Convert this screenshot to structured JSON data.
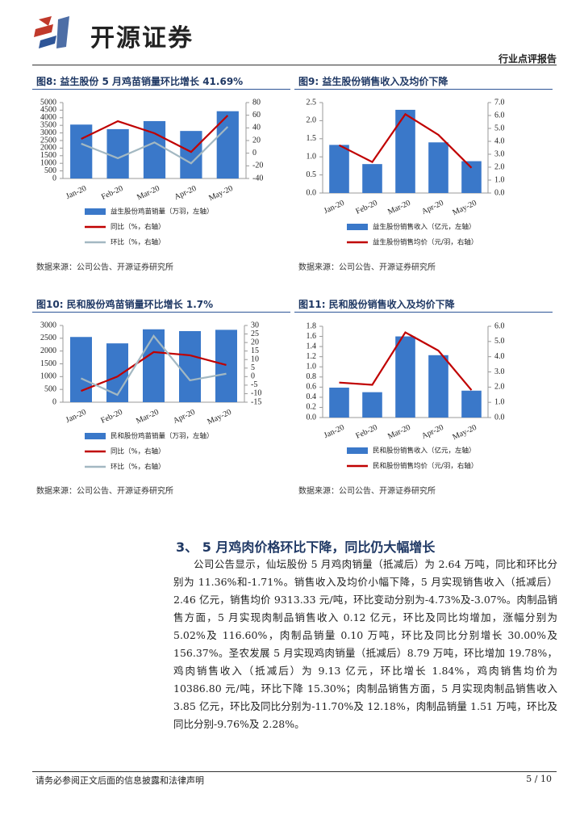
{
  "header": {
    "logo": "开源证券",
    "report_type": "行业点评报告"
  },
  "chart_data": [
    {
      "type": "bar",
      "title": "图8: 益生股份 5 月鸡苗销量环比增长 41.69%",
      "source": "数据来源：公司公告、开源证券研究所",
      "categories": [
        "Jan-20",
        "Feb-20",
        "Mar-20",
        "Apr-20",
        "May-20"
      ],
      "series": [
        {
          "name": "益生股份鸡苗销量（万羽，左轴）",
          "type": "bar",
          "color": "#3a78c9",
          "values": [
            3550,
            3250,
            3780,
            3130,
            4430
          ]
        },
        {
          "name": "同比（%，右轴）",
          "type": "line",
          "axis": "y2",
          "color": "#c00000",
          "values": [
            22.5,
            50.6,
            31.5,
            2,
            59.6
          ]
        },
        {
          "name": "环比（%，右轴）",
          "type": "line",
          "axis": "y2",
          "color": "#a3b8c2",
          "values": [
            15,
            -8,
            17,
            -16,
            41.69
          ]
        }
      ],
      "ylim": [
        0,
        5000
      ],
      "yticks": [
        0,
        500,
        1000,
        1500,
        2000,
        2500,
        3000,
        3500,
        4000,
        4500,
        5000
      ],
      "y2lim": [
        -40,
        80
      ],
      "y2ticks": [
        -40,
        -20,
        0,
        20,
        40,
        60,
        80
      ]
    },
    {
      "type": "bar",
      "title": "图9: 益生股份销售收入及均价下降",
      "source": "数据来源：公司公告、开源证券研究所",
      "categories": [
        "Jan-20",
        "Feb-20",
        "Mar-20",
        "Apr-20",
        "May-20"
      ],
      "series": [
        {
          "name": "益生股份销售收入（亿元，左轴）",
          "type": "bar",
          "color": "#3a78c9",
          "values": [
            1.33,
            0.8,
            2.3,
            1.4,
            0.88
          ]
        },
        {
          "name": "益生股份销售均价（元/羽，右轴）",
          "type": "line",
          "axis": "y2",
          "color": "#c00000",
          "values": [
            3.7,
            2.4,
            6.1,
            4.5,
            1.95
          ]
        }
      ],
      "ylim": [
        0,
        2.5
      ],
      "yticks": [
        {
          "value": 0,
          "label": "0.0"
        },
        0.5,
        {
          "value": 1,
          "label": "1.0"
        },
        1.5,
        {
          "value": 2,
          "label": "2.0"
        },
        2.5
      ],
      "y2lim": [
        0,
        7
      ],
      "y2ticks": [
        {
          "value": 0,
          "label": "0.0"
        },
        {
          "value": 1,
          "label": "1.0"
        },
        {
          "value": 2,
          "label": "2.0"
        },
        {
          "value": 3,
          "label": "3.0"
        },
        {
          "value": 4,
          "label": "4.0"
        },
        {
          "value": 5,
          "label": "5.0"
        },
        {
          "value": 6,
          "label": "6.0"
        },
        {
          "value": 7,
          "label": "7.0"
        }
      ]
    },
    {
      "type": "bar",
      "title": "图10: 民和股份鸡苗销量环比增长 1.7%",
      "source": "数据来源：公司公告、开源证券研究所",
      "categories": [
        "Jan-20",
        "Feb-20",
        "Mar-20",
        "Apr-20",
        "May-20"
      ],
      "series": [
        {
          "name": "民和股份鸡苗销量（万羽，左轴）",
          "type": "bar",
          "color": "#3a78c9",
          "values": [
            2550,
            2300,
            2850,
            2780,
            2830
          ]
        },
        {
          "name": "同比（%，右轴）",
          "type": "line",
          "axis": "y2",
          "color": "#c00000",
          "values": [
            -8.4,
            0,
            14.4,
            12.5,
            6.8
          ]
        },
        {
          "name": "环比（%，右轴）",
          "type": "line",
          "axis": "y2",
          "color": "#a3b8c2",
          "values": [
            -1,
            -10.7,
            23.9,
            -2.2,
            1.7
          ]
        }
      ],
      "ylim": [
        0,
        3000
      ],
      "yticks": [
        0,
        500,
        1000,
        1500,
        2000,
        2500,
        3000
      ],
      "y2lim": [
        -15,
        30
      ],
      "y2ticks": [
        -15,
        -10,
        -5,
        0,
        5,
        10,
        15,
        20,
        25,
        30
      ]
    },
    {
      "type": "bar",
      "title": "图11: 民和股份销售收入及均价下降",
      "source": "数据来源：公司公告、开源证券研究所",
      "categories": [
        "Jan-20",
        "Feb-20",
        "Mar-20",
        "Apr-20",
        "May-20"
      ],
      "series": [
        {
          "name": "民和股份销售收入（亿元，左轴）",
          "type": "bar",
          "color": "#3a78c9",
          "values": [
            0.59,
            0.5,
            1.6,
            1.23,
            0.53
          ]
        },
        {
          "name": "民和股份销售均价（元/羽，右轴）",
          "type": "line",
          "axis": "y2",
          "color": "#c00000",
          "values": [
            2.3,
            2.15,
            5.6,
            4.4,
            1.8
          ]
        }
      ],
      "ylim": [
        0,
        1.8
      ],
      "yticks": [
        {
          "value": 0,
          "label": "0.0"
        },
        0.2,
        0.4,
        0.6,
        0.8,
        {
          "value": 1,
          "label": "1.0"
        },
        1.2,
        1.4,
        1.6,
        1.8
      ],
      "y2lim": [
        0,
        6
      ],
      "y2ticks": [
        {
          "value": 0,
          "label": "0.0"
        },
        {
          "value": 1,
          "label": "1.0"
        },
        {
          "value": 2,
          "label": "2.0"
        },
        {
          "value": 3,
          "label": "3.0"
        },
        {
          "value": 4,
          "label": "4.0"
        },
        {
          "value": 5,
          "label": "5.0"
        },
        {
          "value": 6,
          "label": "6.0"
        }
      ]
    }
  ],
  "section": {
    "heading": "3、 5 月鸡肉价格环比下降，同比仍大幅增长",
    "paragraph": "公司公告显示，仙坛股份 5 月鸡肉销量（抵减后）为 2.64 万吨，同比和环比分别为 11.36%和-1.71%。销售收入及均价小幅下降，5 月实现销售收入（抵减后）2.46 亿元，销售均价 9313.33 元/吨，环比变动分别为-4.73%及-3.07%。肉制品销售方面，5 月实现肉制品销售收入 0.12 亿元，环比及同比均增加，涨幅分别为 5.02%及 116.60%，肉制品销量 0.10 万吨，环比及同比分别增长 30.00%及 156.37%。圣农发展 5 月实现鸡肉销量（抵减后）8.79 万吨，环比增加 19.78%，鸡肉销售收入（抵减后）为 9.13 亿元，环比增长 1.84%，鸡肉销售均价为 10386.80 元/吨，环比下降 15.30%；肉制品销售方面，5 月实现肉制品销售收入 3.85 亿元，环比及同比分别为-11.70%及 12.18%，肉制品销量 1.51 万吨，环比及同比分别-9.76%及 2.28%。"
  },
  "footer": {
    "disclaimer": "请务必参阅正文后面的信息披露和法律声明",
    "page": "5 / 10"
  }
}
